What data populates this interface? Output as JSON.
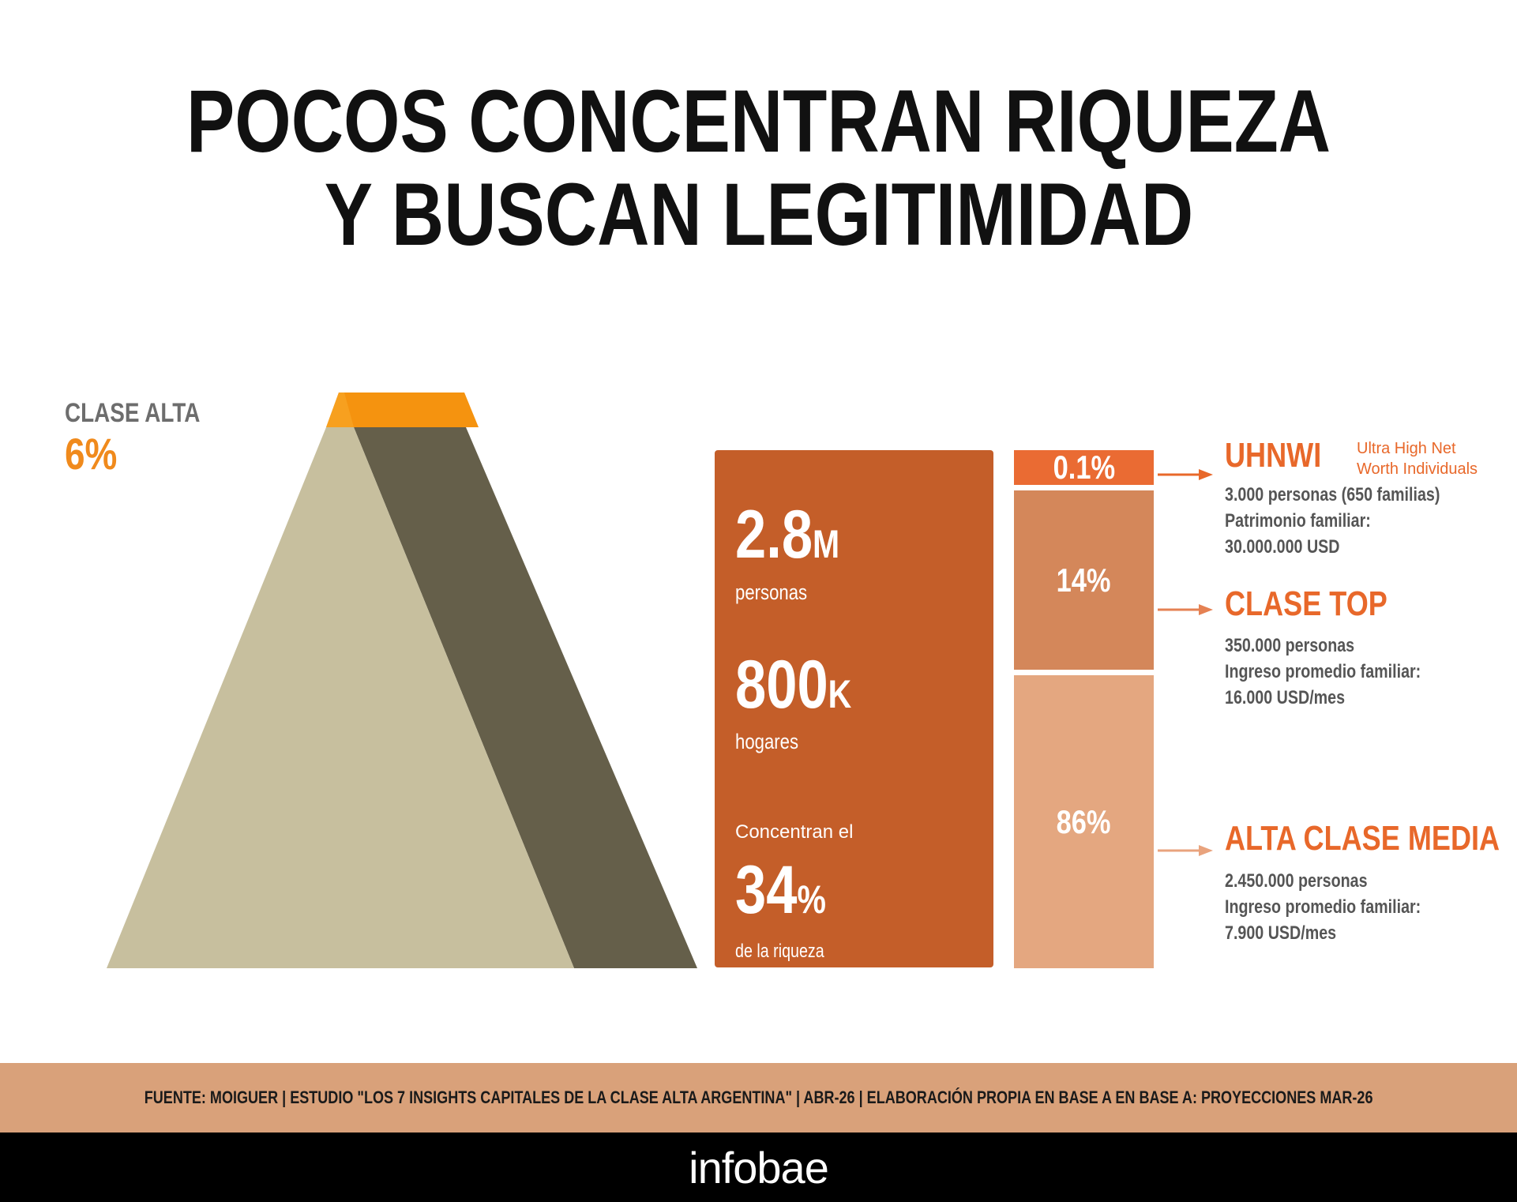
{
  "title": {
    "line1": "POCOS CONCENTRAN RIQUEZA",
    "line2": "Y BUSCAN LEGITIMIDAD"
  },
  "pyramid": {
    "label": "CLASE ALTA",
    "percent": "6%",
    "share": 0.06
  },
  "stats": {
    "people_value": "2.8",
    "people_unit": "M",
    "people_label": "personas",
    "households_value": "800",
    "households_unit": "K",
    "households_label": "hogares",
    "wealth_intro": "Concentran el",
    "wealth_value": "34",
    "wealth_unit": "%",
    "wealth_label": "de la riqueza"
  },
  "segments": [
    {
      "label": "0.1%",
      "value": 0.1
    },
    {
      "label": "14%",
      "value": 14
    },
    {
      "label": "86%",
      "value": 86
    }
  ],
  "categories": [
    {
      "title": "UHNWI",
      "subtitle_line1": "Ultra High Net",
      "subtitle_line2": "Worth Individuals",
      "line1": "3.000 personas (650 familias)",
      "line2": "Patrimonio familiar:",
      "line3": "30.000.000 USD"
    },
    {
      "title": "CLASE TOP",
      "line1": "350.000 personas",
      "line2": "Ingreso promedio familiar:",
      "line3": "16.000 USD/mes"
    },
    {
      "title": "ALTA CLASE MEDIA",
      "line1": "2.450.000 personas",
      "line2": "Ingreso promedio familiar:",
      "line3": "7.900 USD/mes"
    }
  ],
  "source": "FUENTE: MOIGUER | ESTUDIO \"LOS 7 INSIGHTS CAPITALES DE LA CLASE ALTA ARGENTINA\" | ABR-26 | ELABORACIÓN PROPIA EN BASE A EN BASE A: PROYECCIONES MAR-26",
  "brand": "infobae",
  "colors": {
    "title": "#111111",
    "accent_orange": "#f08a1c",
    "pyramid_light": "#c7bf9e",
    "pyramid_dark": "#655f4a",
    "pyramid_top": "#f5930f",
    "stats_box": "#c45e29",
    "segment_uhnwi": "#ea6b33",
    "segment_top": "#d4875a",
    "segment_media": "#e4a780",
    "category_title": "#e8682a",
    "source_bar": "#d9a17a",
    "footer": "#000000"
  }
}
